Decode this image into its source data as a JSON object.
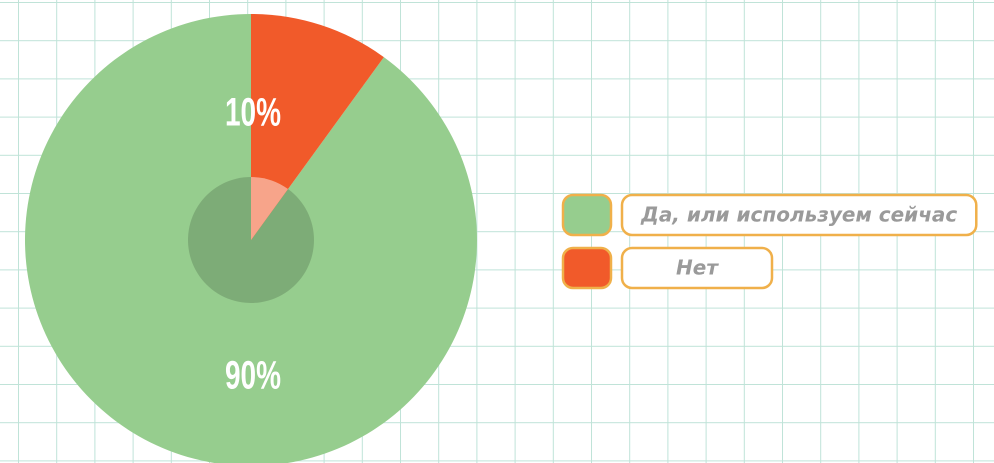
{
  "chart_data": {
    "type": "pie",
    "categories": [
      "Да, или используем сейчас",
      "Нет"
    ],
    "values": [
      90,
      10
    ],
    "value_labels": [
      "90%",
      "10%"
    ],
    "colors": [
      "#96cd8e",
      "#f15a2a"
    ]
  }
}
